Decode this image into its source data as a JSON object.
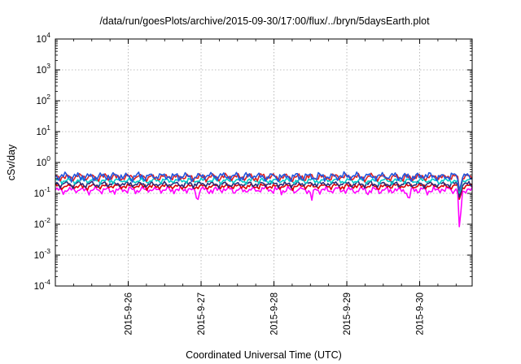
{
  "chart_data": {
    "type": "line",
    "title": "/data/run/goesPlots/archive/2015-09-30/17:00/flux/../bryn/5daysEarth.plot",
    "xlabel": "Coordinated Universal Time (UTC)",
    "ylabel": "cSv/day",
    "yscale": "log",
    "ylim_exponents": [
      -4,
      4
    ],
    "y_tick_labels": [
      {
        "base": "10",
        "exp": "4"
      },
      {
        "base": "10",
        "exp": "3"
      },
      {
        "base": "10",
        "exp": "2"
      },
      {
        "base": "10",
        "exp": "1"
      },
      {
        "base": "10",
        "exp": "0"
      },
      {
        "base": "10",
        "exp": "-1"
      },
      {
        "base": "10",
        "exp": "-2"
      },
      {
        "base": "10",
        "exp": "-3"
      },
      {
        "base": "10",
        "exp": "-4"
      }
    ],
    "xlim_days": [
      0,
      5.72
    ],
    "x_ticks": [
      {
        "day": 1,
        "label": "2015-9-26"
      },
      {
        "day": 2,
        "label": "2015-9-27"
      },
      {
        "day": 3,
        "label": "2015-9-28"
      },
      {
        "day": 4,
        "label": "2015-9-29"
      },
      {
        "day": 5,
        "label": "2015-9-30"
      }
    ],
    "grid": true,
    "series": [
      {
        "color": "#ff00ff",
        "base": 0.13,
        "amp": 0.02,
        "phase": 0.0,
        "dips": [
          {
            "day": 1.95,
            "value": 0.05
          },
          {
            "day": 3.52,
            "value": 0.06
          },
          {
            "day": 4.85,
            "value": 0.05
          },
          {
            "day": 5.55,
            "value": 0.004
          }
        ]
      },
      {
        "color": "#dd0000",
        "base": 0.17,
        "amp": 0.02,
        "phase": 1.1,
        "dips": [
          {
            "day": 5.55,
            "value": 0.05
          }
        ]
      },
      {
        "color": "#2b2b7a",
        "base": 0.2,
        "amp": 0.025,
        "phase": 2.2,
        "dips": [
          {
            "day": 5.55,
            "value": 0.06
          }
        ]
      },
      {
        "color": "#00cccc",
        "base": 0.26,
        "amp": 0.03,
        "phase": 0.6,
        "dips": [
          {
            "day": 5.55,
            "value": 0.08
          }
        ]
      },
      {
        "color": "#dd2222",
        "base": 0.34,
        "amp": 0.05,
        "phase": 1.7,
        "dips": [
          {
            "day": 5.55,
            "value": 0.1
          }
        ]
      },
      {
        "color": "#2255dd",
        "base": 0.36,
        "amp": 0.06,
        "phase": 2.8,
        "dips": [
          {
            "day": 5.55,
            "value": 0.1
          }
        ]
      }
    ]
  }
}
